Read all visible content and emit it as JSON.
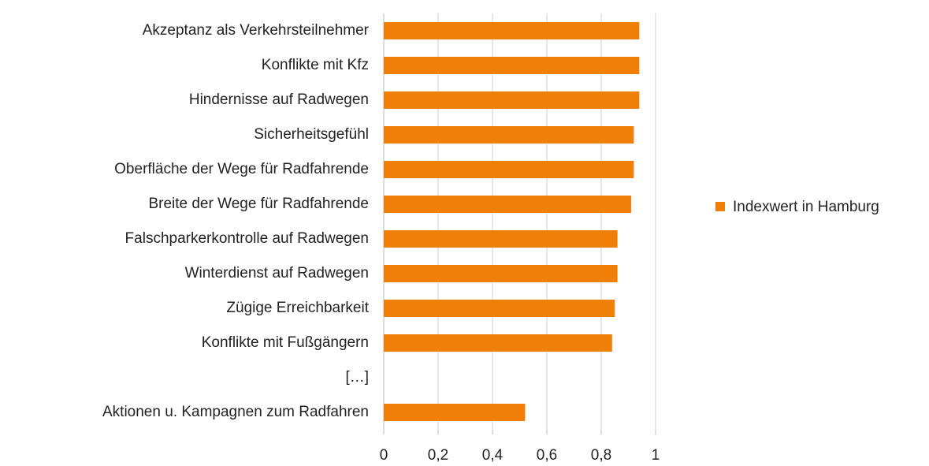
{
  "chart_data": {
    "type": "bar",
    "orientation": "horizontal",
    "categories": [
      "Akzeptanz als Verkehrsteilnehmer",
      "Konflikte mit Kfz",
      "Hindernisse auf Radwegen",
      "Sicherheitsgefühl",
      "Oberfläche der Wege für Radfahrende",
      "Breite der Wege für Radfahrende",
      "Falschparkerkontrolle auf Radwegen",
      "Winterdienst auf Radwegen",
      "Zügige Erreichbarkeit",
      "Konflikte mit Fußgängern",
      "[…]",
      "Aktionen u. Kampagnen zum Radfahren"
    ],
    "series": [
      {
        "name": "Indexwert in Hamburg",
        "color": "#f07f09",
        "values": [
          0.94,
          0.94,
          0.94,
          0.92,
          0.92,
          0.91,
          0.86,
          0.86,
          0.85,
          0.84,
          null,
          0.52
        ]
      }
    ],
    "xlim": [
      0,
      1
    ],
    "xticks": [
      0,
      {
        "value": 0.2,
        "label": "0,2"
      },
      {
        "value": 0.4,
        "label": "0,4"
      },
      {
        "value": 0.6,
        "label": "0,6"
      },
      {
        "value": 0.8,
        "label": "0,8"
      },
      1
    ],
    "grid": true,
    "legend": "right"
  }
}
